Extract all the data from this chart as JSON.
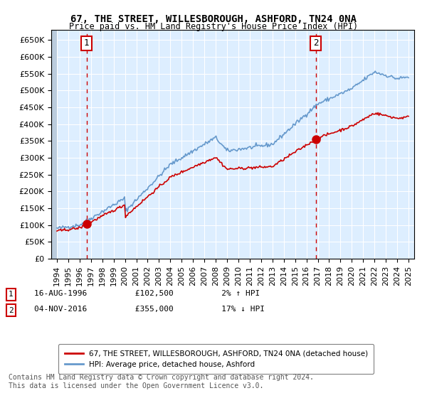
{
  "title": "67, THE STREET, WILLESBOROUGH, ASHFORD, TN24 0NA",
  "subtitle": "Price paid vs. HM Land Registry's House Price Index (HPI)",
  "ylabel_vals": [
    0,
    50000,
    100000,
    150000,
    200000,
    250000,
    300000,
    350000,
    400000,
    450000,
    500000,
    550000,
    600000,
    650000
  ],
  "ylim": [
    0,
    680000
  ],
  "xlim_start": 1993.5,
  "xlim_end": 2025.5,
  "xticks": [
    1994,
    1995,
    1996,
    1997,
    1998,
    1999,
    2000,
    2001,
    2002,
    2003,
    2004,
    2005,
    2006,
    2007,
    2008,
    2009,
    2010,
    2011,
    2012,
    2013,
    2014,
    2015,
    2016,
    2017,
    2018,
    2019,
    2020,
    2021,
    2022,
    2023,
    2024,
    2025
  ],
  "sale1_year": 1996.62,
  "sale1_price": 102500,
  "sale1_label": "1",
  "sale1_date": "16-AUG-1996",
  "sale1_hpi_pct": "2% ↑ HPI",
  "sale2_year": 2016.84,
  "sale2_price": 355000,
  "sale2_label": "2",
  "sale2_date": "04-NOV-2016",
  "sale2_hpi_pct": "17% ↓ HPI",
  "legend_line1": "67, THE STREET, WILLESBOROUGH, ASHFORD, TN24 0NA (detached house)",
  "legend_line2": "HPI: Average price, detached house, Ashford",
  "annotation1_text": "1   16-AUG-1996        £102,500        2% ↑ HPI",
  "annotation2_text": "2   04-NOV-2016        £355,000        17% ↓ HPI",
  "footnote": "Contains HM Land Registry data © Crown copyright and database right 2024.\nThis data is licensed under the Open Government Licence v3.0.",
  "bg_color": "#ddeeff",
  "grid_color": "#ffffff",
  "hatch_color": "#bbccdd",
  "price_line_color": "#cc0000",
  "hpi_line_color": "#6699cc"
}
